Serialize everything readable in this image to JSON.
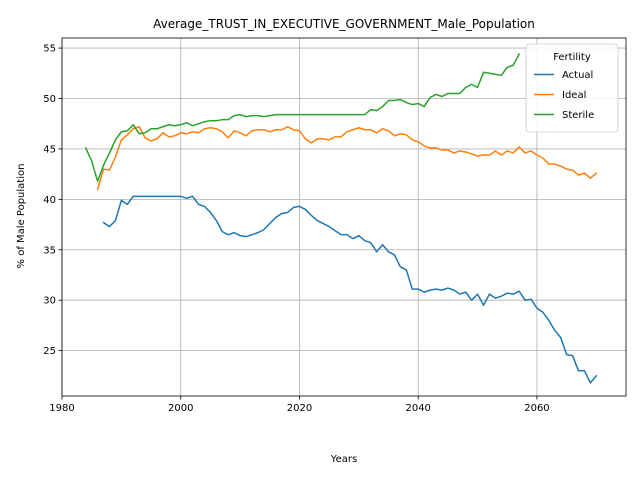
{
  "chart_data": {
    "type": "line",
    "title": "Average_TRUST_IN_EXECUTIVE_GOVERNMENT_Male_Population",
    "xlabel": "Years",
    "ylabel": "% of Male Population",
    "xlim": [
      1980,
      2075
    ],
    "ylim": [
      20.5,
      56.0
    ],
    "x_ticks": [
      1980,
      2000,
      2020,
      2040,
      2060
    ],
    "y_ticks": [
      25,
      30,
      35,
      40,
      45,
      50,
      55
    ],
    "grid": true,
    "legend": {
      "title": "Fertility",
      "placement": "top-right"
    },
    "series": [
      {
        "name": "Actual",
        "color": "#1f77b4",
        "x": [
          1987,
          1988,
          1989,
          1990,
          1991,
          1992,
          1993,
          1994,
          1995,
          1996,
          1997,
          1998,
          1999,
          2000,
          2001,
          2002,
          2003,
          2004,
          2005,
          2006,
          2007,
          2008,
          2009,
          2010,
          2011,
          2012,
          2013,
          2014,
          2015,
          2016,
          2017,
          2018,
          2019,
          2020,
          2021,
          2022,
          2023,
          2024,
          2025,
          2026,
          2027,
          2028,
          2029,
          2030,
          2031,
          2032,
          2033,
          2034,
          2035,
          2036,
          2037,
          2038,
          2039,
          2040,
          2041,
          2042,
          2043,
          2044,
          2045,
          2046,
          2047,
          2048,
          2049,
          2050,
          2051,
          2052,
          2053,
          2054,
          2055,
          2056,
          2057,
          2058,
          2059,
          2060,
          2061,
          2062,
          2063,
          2064,
          2065,
          2066,
          2067,
          2068,
          2069,
          2070
        ],
        "values": [
          37.7,
          37.3,
          37.9,
          39.9,
          39.5,
          40.3,
          40.3,
          40.3,
          40.3,
          40.3,
          40.3,
          40.3,
          40.3,
          40.3,
          40.1,
          40.3,
          39.5,
          39.3,
          38.7,
          37.9,
          36.8,
          36.5,
          36.7,
          36.4,
          36.3,
          36.5,
          36.7,
          37.0,
          37.6,
          38.2,
          38.6,
          38.7,
          39.2,
          39.3,
          39.0,
          38.4,
          37.9,
          37.6,
          37.3,
          36.9,
          36.5,
          36.5,
          36.1,
          36.4,
          35.9,
          35.7,
          34.8,
          35.5,
          34.8,
          34.5,
          33.3,
          33.0,
          31.1,
          31.1,
          30.8,
          31.0,
          31.1,
          31.0,
          31.2,
          31.0,
          30.6,
          30.8,
          30.0,
          30.6,
          29.5,
          30.6,
          30.2,
          30.4,
          30.7,
          30.6,
          30.9,
          30.0,
          30.1,
          29.2,
          28.8,
          28.0,
          27.0,
          26.3,
          24.6,
          24.5,
          23.0,
          23.0,
          21.8,
          22.5
        ]
      },
      {
        "name": "Ideal",
        "color": "#ff7f0e",
        "x": [
          1986,
          1987,
          1988,
          1989,
          1990,
          1991,
          1992,
          1993,
          1994,
          1995,
          1996,
          1997,
          1998,
          1999,
          2000,
          2001,
          2002,
          2003,
          2004,
          2005,
          2006,
          2007,
          2008,
          2009,
          2010,
          2011,
          2012,
          2013,
          2014,
          2015,
          2016,
          2017,
          2018,
          2019,
          2020,
          2021,
          2022,
          2023,
          2024,
          2025,
          2026,
          2027,
          2028,
          2029,
          2030,
          2031,
          2032,
          2033,
          2034,
          2035,
          2036,
          2037,
          2038,
          2039,
          2040,
          2041,
          2042,
          2043,
          2044,
          2045,
          2046,
          2047,
          2048,
          2049,
          2050,
          2051,
          2052,
          2053,
          2054,
          2055,
          2056,
          2057,
          2058,
          2059,
          2060,
          2061,
          2062,
          2063,
          2064,
          2065,
          2066,
          2067,
          2068,
          2069,
          2070
        ],
        "values": [
          41.0,
          43.0,
          42.9,
          44.2,
          45.9,
          46.4,
          47.0,
          47.2,
          46.1,
          45.8,
          46.0,
          46.6,
          46.2,
          46.3,
          46.6,
          46.5,
          46.7,
          46.6,
          47.0,
          47.1,
          47.0,
          46.7,
          46.1,
          46.8,
          46.6,
          46.3,
          46.8,
          46.9,
          46.9,
          46.7,
          46.9,
          46.9,
          47.2,
          46.9,
          46.8,
          46.0,
          45.6,
          46.0,
          46.0,
          45.9,
          46.2,
          46.2,
          46.7,
          46.9,
          47.1,
          46.9,
          46.9,
          46.6,
          47.0,
          46.8,
          46.3,
          46.5,
          46.4,
          45.9,
          45.7,
          45.3,
          45.1,
          45.1,
          44.9,
          44.9,
          44.6,
          44.8,
          44.7,
          44.5,
          44.3,
          44.4,
          44.4,
          44.8,
          44.4,
          44.8,
          44.6,
          45.2,
          44.6,
          44.8,
          44.4,
          44.1,
          43.5,
          43.5,
          43.3,
          43.0,
          42.9,
          42.4,
          42.6,
          42.1,
          42.6
        ]
      },
      {
        "name": "Sterile",
        "color": "#2ca02c",
        "x": [
          1984,
          1985,
          1986,
          1987,
          1988,
          1989,
          1990,
          1991,
          1992,
          1993,
          1994,
          1995,
          1996,
          1997,
          1998,
          1999,
          2000,
          2001,
          2002,
          2003,
          2004,
          2005,
          2006,
          2007,
          2008,
          2009,
          2010,
          2011,
          2012,
          2013,
          2014,
          2015,
          2016,
          2017,
          2018,
          2019,
          2020,
          2021,
          2022,
          2023,
          2024,
          2025,
          2026,
          2027,
          2028,
          2029,
          2030,
          2031,
          2032,
          2033,
          2034,
          2035,
          2036,
          2037,
          2038,
          2039,
          2040,
          2041,
          2042,
          2043,
          2044,
          2045,
          2046,
          2047,
          2048,
          2049,
          2050,
          2051,
          2052,
          2053,
          2054,
          2055,
          2056,
          2057
        ],
        "values": [
          45.1,
          43.8,
          41.8,
          43.4,
          44.6,
          45.9,
          46.7,
          46.8,
          47.4,
          46.5,
          46.6,
          47.0,
          47.0,
          47.2,
          47.4,
          47.3,
          47.4,
          47.6,
          47.3,
          47.5,
          47.7,
          47.8,
          47.8,
          47.9,
          47.9,
          48.3,
          48.4,
          48.2,
          48.3,
          48.3,
          48.2,
          48.3,
          48.4,
          48.4,
          48.4,
          48.4,
          48.4,
          48.4,
          48.4,
          48.4,
          48.4,
          48.4,
          48.4,
          48.4,
          48.4,
          48.4,
          48.4,
          48.4,
          48.9,
          48.8,
          49.2,
          49.8,
          49.8,
          49.9,
          49.6,
          49.4,
          49.5,
          49.2,
          50.1,
          50.4,
          50.2,
          50.5,
          50.5,
          50.5,
          51.1,
          51.4,
          51.1,
          52.6,
          52.5,
          52.4,
          52.3,
          53.1,
          53.3,
          54.4
        ]
      }
    ]
  }
}
